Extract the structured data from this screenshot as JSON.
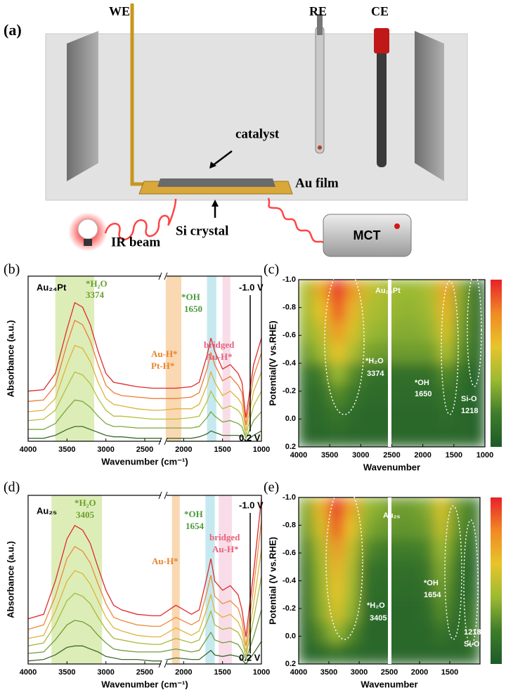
{
  "diagram": {
    "panel_label": "(a)",
    "we": "WE",
    "re": "RE",
    "ce": "CE",
    "catalyst": "catalyst",
    "au_film": "Au film",
    "si_crystal": "Si crystal",
    "ir_beam": "IR beam",
    "mct": "MCT"
  },
  "chart_data": [
    {
      "type": "line",
      "panel_label": "(b)",
      "x_label": "Wavenumber (cm⁻¹)",
      "y_label": "Absorbance (a.u.)",
      "x": [
        4000,
        3800,
        3650,
        3500,
        3400,
        3300,
        3200,
        3100,
        3000,
        2900,
        2800,
        2600,
        2400,
        2300,
        2100,
        1900,
        1800,
        1700,
        1650,
        1600,
        1500,
        1400,
        1300,
        1250,
        1200,
        1100,
        1000
      ],
      "xlim": [
        4000,
        1000
      ],
      "xticks": [
        4000,
        3500,
        3000,
        2500,
        2000,
        1500,
        1000
      ],
      "ylim": [
        0,
        1.12
      ],
      "series": [
        {
          "color": "#3d6b2a",
          "values": [
            0.02,
            0.02,
            0.04,
            0.08,
            0.1,
            0.1,
            0.08,
            0.06,
            0.04,
            0.03,
            0.03,
            0.02,
            0.02,
            0.02,
            0.02,
            0.02,
            0.03,
            0.05,
            0.07,
            0.06,
            0.04,
            0.04,
            0.04,
            0.03,
            0,
            0.04,
            0.07
          ]
        },
        {
          "color": "#7aa83a",
          "values": [
            0.08,
            0.08,
            0.12,
            0.22,
            0.28,
            0.27,
            0.23,
            0.17,
            0.12,
            0.1,
            0.1,
            0.09,
            0.09,
            0.09,
            0.09,
            0.09,
            0.1,
            0.16,
            0.2,
            0.17,
            0.13,
            0.14,
            0.12,
            0.1,
            0.02,
            0.14,
            0.2
          ]
        },
        {
          "color": "#b5c03a",
          "values": [
            0.14,
            0.15,
            0.21,
            0.37,
            0.47,
            0.45,
            0.39,
            0.29,
            0.21,
            0.17,
            0.17,
            0.16,
            0.15,
            0.15,
            0.15,
            0.16,
            0.17,
            0.27,
            0.34,
            0.29,
            0.22,
            0.24,
            0.21,
            0.17,
            0.04,
            0.24,
            0.34
          ]
        },
        {
          "color": "#e0b13a",
          "values": [
            0.2,
            0.21,
            0.29,
            0.52,
            0.65,
            0.63,
            0.54,
            0.4,
            0.29,
            0.25,
            0.24,
            0.22,
            0.21,
            0.21,
            0.22,
            0.22,
            0.25,
            0.38,
            0.47,
            0.4,
            0.31,
            0.34,
            0.29,
            0.25,
            0.07,
            0.34,
            0.47
          ]
        },
        {
          "color": "#ee7a36",
          "values": [
            0.27,
            0.28,
            0.38,
            0.66,
            0.82,
            0.79,
            0.68,
            0.52,
            0.38,
            0.33,
            0.31,
            0.3,
            0.29,
            0.29,
            0.29,
            0.3,
            0.33,
            0.49,
            0.6,
            0.52,
            0.41,
            0.44,
            0.38,
            0.33,
            0.11,
            0.44,
            0.6
          ]
        },
        {
          "color": "#e02a2a",
          "values": [
            0.34,
            0.35,
            0.46,
            0.76,
            0.94,
            0.91,
            0.79,
            0.61,
            0.46,
            0.4,
            0.39,
            0.37,
            0.36,
            0.36,
            0.36,
            0.37,
            0.4,
            0.58,
            0.7,
            0.61,
            0.49,
            0.52,
            0.46,
            0.4,
            0.16,
            0.52,
            0.7
          ]
        }
      ],
      "highlights": [
        {
          "range": [
            3650,
            3150
          ],
          "color": "#cfe59a"
        },
        {
          "range": [
            2230,
            2030
          ],
          "color": "#f7c892"
        },
        {
          "range": [
            1700,
            1580
          ],
          "color": "#aee0ea"
        },
        {
          "range": [
            1500,
            1400
          ],
          "color": "#f5cfe0"
        }
      ],
      "annotations": [
        "Au₂₄Pt",
        "*H₂O",
        "3374",
        "*OH",
        "1650",
        "Au-H*",
        "Pt-H*",
        "bridged",
        "Au-H*",
        "-1.0 V",
        "0.2 V"
      ]
    },
    {
      "type": "heatmap",
      "panel_label": "(c)",
      "x_label": "Wavenumber",
      "y_label": "Potential(V vs.RHE)",
      "x": [
        3875,
        3625,
        3375,
        3125,
        2875,
        2625,
        2375,
        2125,
        1875,
        1625,
        1375,
        1125
      ],
      "y": [
        -0.925,
        -0.775,
        -0.625,
        -0.475,
        -0.325,
        -0.175,
        -0.025,
        0.125
      ],
      "z": [
        [
          0.45,
          0.7,
          1.0,
          0.75,
          0.5,
          0.45,
          0.4,
          0.4,
          0.45,
          0.7,
          0.35,
          0.1
        ],
        [
          0.42,
          0.6,
          0.9,
          0.65,
          0.45,
          0.42,
          0.38,
          0.38,
          0.42,
          0.65,
          0.33,
          0.1
        ],
        [
          0.38,
          0.5,
          0.75,
          0.55,
          0.4,
          0.38,
          0.35,
          0.35,
          0.38,
          0.55,
          0.3,
          0.1
        ],
        [
          0.3,
          0.4,
          0.6,
          0.45,
          0.32,
          0.3,
          0.3,
          0.3,
          0.3,
          0.45,
          0.25,
          0.1
        ],
        [
          0.15,
          0.2,
          0.4,
          0.25,
          0.15,
          0.12,
          0.12,
          0.12,
          0.12,
          0.25,
          0.12,
          0.05
        ],
        [
          0.1,
          0.12,
          0.25,
          0.15,
          0.1,
          0.1,
          0.1,
          0.1,
          0.1,
          0.15,
          0.1,
          0.05
        ],
        [
          0.08,
          0.1,
          0.15,
          0.1,
          0.08,
          0.08,
          0.08,
          0.08,
          0.08,
          0.1,
          0.08,
          0.05
        ],
        [
          0.08,
          0.08,
          0.1,
          0.08,
          0.08,
          0.08,
          0.08,
          0.08,
          0.08,
          0.08,
          0.08,
          0.05
        ]
      ],
      "xlim": [
        4000,
        1000
      ],
      "xticks": [
        4000,
        3500,
        3000,
        2500,
        2000,
        1500,
        1000
      ],
      "ylim": [
        -1,
        0.2
      ],
      "y_reversed": true,
      "yticks": [
        {
          "value": -1,
          "label": "-1.0"
        },
        -0.8,
        -0.6,
        -0.4,
        -0.2,
        {
          "value": 0,
          "label": "0.0"
        },
        0.2
      ],
      "zlim": [
        0,
        1
      ],
      "colorscale": [
        "#1d5a2a",
        "#3f7d2a",
        "#9cba32",
        "#e8c42a",
        "#f08a24",
        "#e8202a"
      ],
      "annotations": [
        "Au₂₄Pt",
        "*H₂O",
        "3374",
        "*OH",
        "1650",
        "Si-O",
        "1218"
      ]
    },
    {
      "type": "line",
      "panel_label": "(d)",
      "x_label": "Wavenumber (cm⁻¹)",
      "y_label": "Absorbance (a.u.)",
      "x": [
        4000,
        3800,
        3650,
        3500,
        3400,
        3300,
        3200,
        3100,
        3000,
        2900,
        2800,
        2600,
        2400,
        2300,
        2100,
        1900,
        1800,
        1700,
        1650,
        1600,
        1500,
        1400,
        1300,
        1250,
        1200,
        1100,
        1000
      ],
      "xlim": [
        4000,
        1000
      ],
      "xticks": [
        4000,
        3500,
        3000,
        2500,
        2000,
        1500,
        1000
      ],
      "ylim": [
        0,
        1.12
      ],
      "series": [
        {
          "color": "#3d6b2a",
          "values": [
            0.02,
            0.03,
            0.06,
            0.11,
            0.12,
            0.12,
            0.1,
            0.08,
            0.05,
            0.04,
            0.03,
            0.03,
            0.02,
            0.02,
            0.04,
            0.03,
            0.03,
            0.07,
            0.09,
            0.06,
            0.05,
            0.06,
            0.05,
            0.03,
            0,
            0.07,
            0.15
          ]
        },
        {
          "color": "#6f9c3a",
          "values": [
            0.07,
            0.08,
            0.16,
            0.26,
            0.29,
            0.28,
            0.25,
            0.19,
            0.14,
            0.1,
            0.09,
            0.08,
            0.08,
            0.08,
            0.1,
            0.08,
            0.09,
            0.17,
            0.21,
            0.16,
            0.14,
            0.15,
            0.13,
            0.09,
            0.03,
            0.18,
            0.36
          ]
        },
        {
          "color": "#a9b83c",
          "values": [
            0.12,
            0.14,
            0.26,
            0.42,
            0.47,
            0.45,
            0.4,
            0.31,
            0.23,
            0.17,
            0.16,
            0.14,
            0.13,
            0.13,
            0.17,
            0.14,
            0.16,
            0.28,
            0.35,
            0.26,
            0.23,
            0.24,
            0.21,
            0.16,
            0.05,
            0.3,
            0.58
          ]
        },
        {
          "color": "#dcb43c",
          "values": [
            0.17,
            0.19,
            0.35,
            0.55,
            0.62,
            0.6,
            0.53,
            0.42,
            0.31,
            0.24,
            0.22,
            0.19,
            0.18,
            0.18,
            0.24,
            0.19,
            0.22,
            0.37,
            0.46,
            0.35,
            0.31,
            0.33,
            0.28,
            0.22,
            0.08,
            0.4,
            0.76
          ]
        },
        {
          "color": "#ec8a3a",
          "values": [
            0.23,
            0.26,
            0.45,
            0.7,
            0.78,
            0.75,
            0.67,
            0.53,
            0.4,
            0.31,
            0.29,
            0.26,
            0.25,
            0.25,
            0.31,
            0.26,
            0.29,
            0.48,
            0.59,
            0.45,
            0.4,
            0.42,
            0.37,
            0.29,
            0.12,
            0.51,
            0.95
          ]
        },
        {
          "color": "#e02a2a",
          "values": [
            0.3,
            0.33,
            0.55,
            0.83,
            0.92,
            0.89,
            0.8,
            0.64,
            0.49,
            0.39,
            0.36,
            0.33,
            0.32,
            0.32,
            0.39,
            0.33,
            0.36,
            0.58,
            0.7,
            0.55,
            0.49,
            0.52,
            0.46,
            0.36,
            0.18,
            0.61,
            1.1
          ]
        }
      ],
      "highlights": [
        {
          "range": [
            3700,
            3050
          ],
          "color": "#cfe59a"
        },
        {
          "range": [
            2150,
            2050
          ],
          "color": "#f7c892"
        },
        {
          "range": [
            1720,
            1600
          ],
          "color": "#aee0ea"
        },
        {
          "range": [
            1550,
            1380
          ],
          "color": "#f5cfe0"
        }
      ],
      "annotations": [
        "Au₂₅",
        "*H₂O",
        "3405",
        "*OH",
        "1654",
        "bridged",
        "Au-H*",
        "Au-H*",
        "-1.0 V",
        "0.2 V"
      ]
    },
    {
      "type": "heatmap",
      "panel_label": "(e)",
      "x_label": "Wavenumber",
      "y_label": "Potential (V vs.RHE)",
      "x": [
        3875,
        3625,
        3375,
        3125,
        2875,
        2625,
        2375,
        2125,
        1875,
        1625,
        1375,
        1125
      ],
      "y": [
        -0.925,
        -0.775,
        -0.625,
        -0.475,
        -0.325,
        -0.175,
        -0.025,
        0.125
      ],
      "z": [
        [
          0.35,
          0.65,
          1.0,
          0.7,
          0.4,
          0.35,
          0.3,
          0.3,
          0.35,
          0.55,
          0.3,
          0.2
        ],
        [
          0.3,
          0.55,
          0.9,
          0.6,
          0.35,
          0.3,
          0.28,
          0.28,
          0.3,
          0.5,
          0.28,
          0.15
        ],
        [
          0.22,
          0.45,
          0.75,
          0.5,
          0.25,
          0.2,
          0.2,
          0.2,
          0.22,
          0.4,
          0.22,
          0.1
        ],
        [
          0.15,
          0.4,
          0.65,
          0.45,
          0.15,
          0.12,
          0.12,
          0.12,
          0.15,
          0.35,
          0.15,
          0.08
        ],
        [
          0.12,
          0.38,
          0.6,
          0.42,
          0.12,
          0.1,
          0.1,
          0.1,
          0.12,
          0.3,
          0.12,
          0.1
        ],
        [
          0.1,
          0.35,
          0.55,
          0.38,
          0.1,
          0.08,
          0.08,
          0.08,
          0.1,
          0.25,
          0.1,
          0.15
        ],
        [
          0.08,
          0.25,
          0.4,
          0.25,
          0.08,
          0.08,
          0.08,
          0.08,
          0.08,
          0.15,
          0.08,
          0.2
        ],
        [
          0.08,
          0.1,
          0.15,
          0.1,
          0.08,
          0.08,
          0.08,
          0.08,
          0.08,
          0.08,
          0.08,
          0.1
        ]
      ],
      "xlim": [
        4000,
        1000
      ],
      "xticks": [
        4000,
        3500,
        3000,
        2500,
        2000,
        1500
      ],
      "ylim": [
        -1,
        0.2
      ],
      "y_reversed": true,
      "yticks": [
        {
          "value": -1,
          "label": "-1.0"
        },
        -0.8,
        -0.6,
        -0.4,
        -0.2,
        {
          "value": 0,
          "label": "0.0"
        },
        0.2
      ],
      "zlim": [
        0,
        1
      ],
      "colorscale": [
        "#1d5a2a",
        "#3f7d2a",
        "#9cba32",
        "#e8c42a",
        "#f08a24",
        "#e8202a"
      ],
      "annotations": [
        "Au₂₅",
        "*H₂O",
        "3405",
        "*OH",
        "1654",
        "1218",
        "Si-O"
      ]
    }
  ]
}
